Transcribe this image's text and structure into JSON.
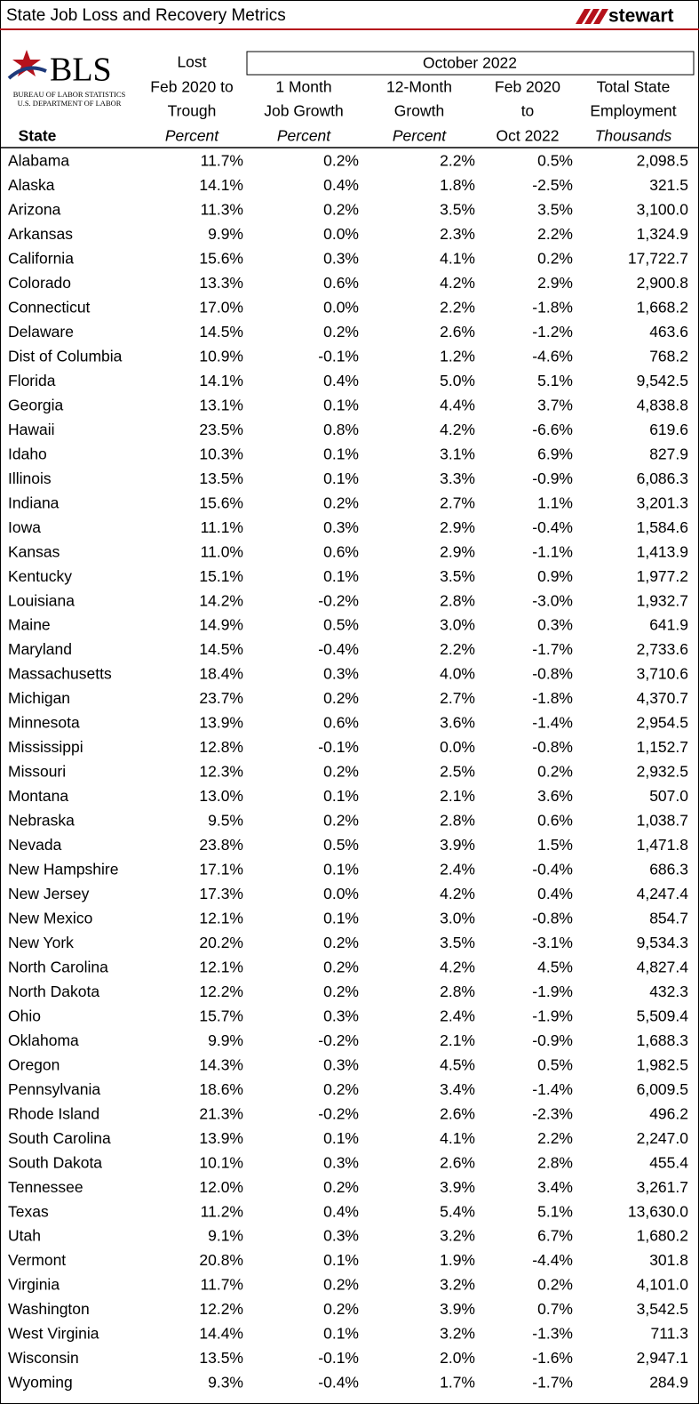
{
  "header": {
    "title": "State Job Loss and Recovery Metrics",
    "brand": "stewart",
    "logo": {
      "name": "BLS",
      "line1": "BUREAU OF LABOR STATISTICS",
      "line2": "U.S. DEPARTMENT OF LABOR"
    }
  },
  "table": {
    "group_header": "October 2022",
    "columns": [
      {
        "lines": [
          "State"
        ]
      },
      {
        "lines": [
          "Lost",
          "Feb 2020 to",
          "Trough"
        ],
        "unit": "Percent"
      },
      {
        "lines": [
          "1 Month",
          "Job Growth"
        ],
        "unit": "Percent"
      },
      {
        "lines": [
          "12-Month",
          "Growth"
        ],
        "unit": "Percent"
      },
      {
        "lines": [
          "Feb 2020",
          "to",
          "Oct 2022"
        ]
      },
      {
        "lines": [
          "Total State",
          "Employment"
        ],
        "unit": "Thousands"
      }
    ],
    "rows": [
      [
        "Alabama",
        "11.7%",
        "0.2%",
        "2.2%",
        "0.5%",
        "2,098.5"
      ],
      [
        "Alaska",
        "14.1%",
        "0.4%",
        "1.8%",
        "-2.5%",
        "321.5"
      ],
      [
        "Arizona",
        "11.3%",
        "0.2%",
        "3.5%",
        "3.5%",
        "3,100.0"
      ],
      [
        "Arkansas",
        "9.9%",
        "0.0%",
        "2.3%",
        "2.2%",
        "1,324.9"
      ],
      [
        "California",
        "15.6%",
        "0.3%",
        "4.1%",
        "0.2%",
        "17,722.7"
      ],
      [
        "Colorado",
        "13.3%",
        "0.6%",
        "4.2%",
        "2.9%",
        "2,900.8"
      ],
      [
        "Connecticut",
        "17.0%",
        "0.0%",
        "2.2%",
        "-1.8%",
        "1,668.2"
      ],
      [
        "Delaware",
        "14.5%",
        "0.2%",
        "2.6%",
        "-1.2%",
        "463.6"
      ],
      [
        "Dist of Columbia",
        "10.9%",
        "-0.1%",
        "1.2%",
        "-4.6%",
        "768.2"
      ],
      [
        "Florida",
        "14.1%",
        "0.4%",
        "5.0%",
        "5.1%",
        "9,542.5"
      ],
      [
        "Georgia",
        "13.1%",
        "0.1%",
        "4.4%",
        "3.7%",
        "4,838.8"
      ],
      [
        "Hawaii",
        "23.5%",
        "0.8%",
        "4.2%",
        "-6.6%",
        "619.6"
      ],
      [
        "Idaho",
        "10.3%",
        "0.1%",
        "3.1%",
        "6.9%",
        "827.9"
      ],
      [
        "Illinois",
        "13.5%",
        "0.1%",
        "3.3%",
        "-0.9%",
        "6,086.3"
      ],
      [
        "Indiana",
        "15.6%",
        "0.2%",
        "2.7%",
        "1.1%",
        "3,201.3"
      ],
      [
        "Iowa",
        "11.1%",
        "0.3%",
        "2.9%",
        "-0.4%",
        "1,584.6"
      ],
      [
        "Kansas",
        "11.0%",
        "0.6%",
        "2.9%",
        "-1.1%",
        "1,413.9"
      ],
      [
        "Kentucky",
        "15.1%",
        "0.1%",
        "3.5%",
        "0.9%",
        "1,977.2"
      ],
      [
        "Louisiana",
        "14.2%",
        "-0.2%",
        "2.8%",
        "-3.0%",
        "1,932.7"
      ],
      [
        "Maine",
        "14.9%",
        "0.5%",
        "3.0%",
        "0.3%",
        "641.9"
      ],
      [
        "Maryland",
        "14.5%",
        "-0.4%",
        "2.2%",
        "-1.7%",
        "2,733.6"
      ],
      [
        "Massachusetts",
        "18.4%",
        "0.3%",
        "4.0%",
        "-0.8%",
        "3,710.6"
      ],
      [
        "Michigan",
        "23.7%",
        "0.2%",
        "2.7%",
        "-1.8%",
        "4,370.7"
      ],
      [
        "Minnesota",
        "13.9%",
        "0.6%",
        "3.6%",
        "-1.4%",
        "2,954.5"
      ],
      [
        "Mississippi",
        "12.8%",
        "-0.1%",
        "0.0%",
        "-0.8%",
        "1,152.7"
      ],
      [
        "Missouri",
        "12.3%",
        "0.2%",
        "2.5%",
        "0.2%",
        "2,932.5"
      ],
      [
        "Montana",
        "13.0%",
        "0.1%",
        "2.1%",
        "3.6%",
        "507.0"
      ],
      [
        "Nebraska",
        "9.5%",
        "0.2%",
        "2.8%",
        "0.6%",
        "1,038.7"
      ],
      [
        "Nevada",
        "23.8%",
        "0.5%",
        "3.9%",
        "1.5%",
        "1,471.8"
      ],
      [
        "New Hampshire",
        "17.1%",
        "0.1%",
        "2.4%",
        "-0.4%",
        "686.3"
      ],
      [
        "New Jersey",
        "17.3%",
        "0.0%",
        "4.2%",
        "0.4%",
        "4,247.4"
      ],
      [
        "New Mexico",
        "12.1%",
        "0.1%",
        "3.0%",
        "-0.8%",
        "854.7"
      ],
      [
        "New York",
        "20.2%",
        "0.2%",
        "3.5%",
        "-3.1%",
        "9,534.3"
      ],
      [
        "North Carolina",
        "12.1%",
        "0.2%",
        "4.2%",
        "4.5%",
        "4,827.4"
      ],
      [
        "North Dakota",
        "12.2%",
        "0.2%",
        "2.8%",
        "-1.9%",
        "432.3"
      ],
      [
        "Ohio",
        "15.7%",
        "0.3%",
        "2.4%",
        "-1.9%",
        "5,509.4"
      ],
      [
        "Oklahoma",
        "9.9%",
        "-0.2%",
        "2.1%",
        "-0.9%",
        "1,688.3"
      ],
      [
        "Oregon",
        "14.3%",
        "0.3%",
        "4.5%",
        "0.5%",
        "1,982.5"
      ],
      [
        "Pennsylvania",
        "18.6%",
        "0.2%",
        "3.4%",
        "-1.4%",
        "6,009.5"
      ],
      [
        "Rhode Island",
        "21.3%",
        "-0.2%",
        "2.6%",
        "-2.3%",
        "496.2"
      ],
      [
        "South Carolina",
        "13.9%",
        "0.1%",
        "4.1%",
        "2.2%",
        "2,247.0"
      ],
      [
        "South Dakota",
        "10.1%",
        "0.3%",
        "2.6%",
        "2.8%",
        "455.4"
      ],
      [
        "Tennessee",
        "12.0%",
        "0.2%",
        "3.9%",
        "3.4%",
        "3,261.7"
      ],
      [
        "Texas",
        "11.2%",
        "0.4%",
        "5.4%",
        "5.1%",
        "13,630.0"
      ],
      [
        "Utah",
        "9.1%",
        "0.3%",
        "3.2%",
        "6.7%",
        "1,680.2"
      ],
      [
        "Vermont",
        "20.8%",
        "0.1%",
        "1.9%",
        "-4.4%",
        "301.8"
      ],
      [
        "Virginia",
        "11.7%",
        "0.2%",
        "3.2%",
        "0.2%",
        "4,101.0"
      ],
      [
        "Washington",
        "12.2%",
        "0.2%",
        "3.9%",
        "0.7%",
        "3,542.5"
      ],
      [
        "West Virginia",
        "14.4%",
        "0.1%",
        "3.2%",
        "-1.3%",
        "711.3"
      ],
      [
        "Wisconsin",
        "13.5%",
        "-0.1%",
        "2.0%",
        "-1.6%",
        "2,947.1"
      ],
      [
        "Wyoming",
        "9.3%",
        "-0.4%",
        "1.7%",
        "-1.7%",
        "284.9"
      ]
    ]
  }
}
